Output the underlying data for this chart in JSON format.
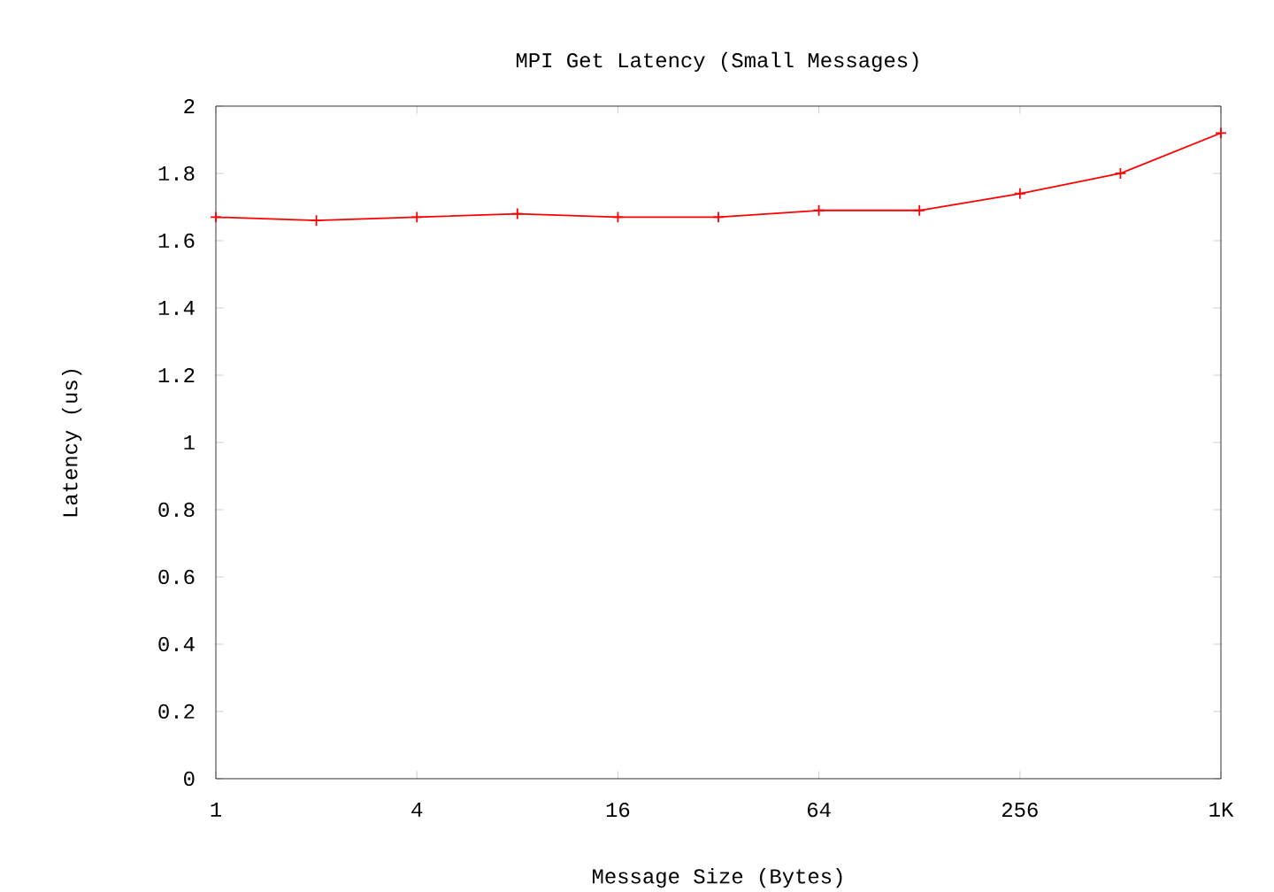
{
  "chart_data": {
    "type": "line",
    "title": "MPI Get Latency (Small Messages)",
    "xlabel": "Message Size (Bytes)",
    "ylabel": "Latency (us)",
    "x": [
      1,
      2,
      4,
      8,
      16,
      32,
      64,
      128,
      256,
      512,
      1024
    ],
    "series": [
      {
        "color": "#ff0000",
        "values": [
          1.67,
          1.66,
          1.67,
          1.68,
          1.67,
          1.67,
          1.69,
          1.69,
          1.74,
          1.8,
          1.92
        ]
      }
    ],
    "log": "x",
    "xlim": [
      1,
      1024
    ],
    "xticks": [
      1,
      4,
      16,
      64,
      256,
      {
        "value": 1024,
        "label": "1K"
      }
    ],
    "ylim": [
      0,
      2
    ],
    "yticks": [
      0,
      0.2,
      0.4,
      0.6,
      0.8,
      1,
      1.2,
      1.4,
      1.6,
      1.8,
      2
    ],
    "grid": false,
    "marker": "cross",
    "line_style": "solid"
  }
}
